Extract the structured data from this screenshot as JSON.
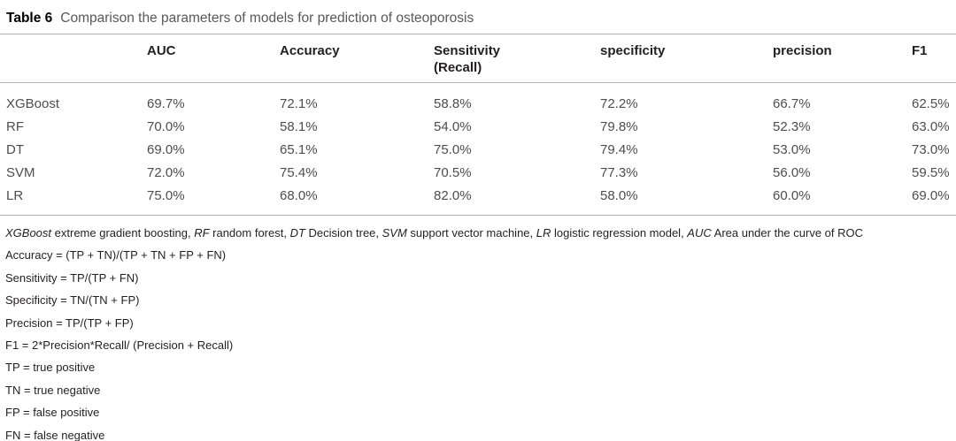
{
  "title": {
    "label": "Table 6",
    "caption": "Comparison the parameters of models for prediction of osteoporosis"
  },
  "table": {
    "columns": [
      {
        "id": "model",
        "label": ""
      },
      {
        "id": "auc",
        "label": "AUC"
      },
      {
        "id": "accuracy",
        "label": "Accuracy"
      },
      {
        "id": "sensitivity-recall",
        "label": "Sensitivity\n(Recall)"
      },
      {
        "id": "specificity",
        "label": "specificity"
      },
      {
        "id": "precision",
        "label": "precision"
      },
      {
        "id": "f1",
        "label": "F1"
      }
    ],
    "rows": [
      {
        "model": "XGBoost",
        "values": [
          "69.7%",
          "72.1%",
          "58.8%",
          "72.2%",
          "66.7%",
          "62.5%"
        ]
      },
      {
        "model": "RF",
        "values": [
          "70.0%",
          "58.1%",
          "54.0%",
          "79.8%",
          "52.3%",
          "63.0%"
        ]
      },
      {
        "model": "DT",
        "values": [
          "69.0%",
          "65.1%",
          "75.0%",
          "79.4%",
          "53.0%",
          "73.0%"
        ]
      },
      {
        "model": "SVM",
        "values": [
          "72.0%",
          "75.4%",
          "70.5%",
          "77.3%",
          "56.0%",
          "59.5%"
        ]
      },
      {
        "model": "LR",
        "values": [
          "75.0%",
          "68.0%",
          "82.0%",
          "58.0%",
          "60.0%",
          "69.0%"
        ]
      }
    ]
  },
  "footnotes": {
    "abbreviations": [
      {
        "text": "XGBoost",
        "italic": true
      },
      {
        "text": " extreme gradient boosting, ",
        "italic": false
      },
      {
        "text": "RF",
        "italic": true
      },
      {
        "text": " random forest, ",
        "italic": false
      },
      {
        "text": "DT",
        "italic": true
      },
      {
        "text": " Decision tree, ",
        "italic": false
      },
      {
        "text": "SVM",
        "italic": true
      },
      {
        "text": " support vector machine, ",
        "italic": false
      },
      {
        "text": "LR",
        "italic": true
      },
      {
        "text": " logistic regression model, ",
        "italic": false
      },
      {
        "text": "AUC",
        "italic": true
      },
      {
        "text": " Area under the curve of ROC",
        "italic": false
      }
    ],
    "lines": [
      "Accuracy = (TP + TN)/(TP + TN + FP + FN)",
      "Sensitivity = TP/(TP + FN)",
      "Specificity = TN/(TN + FP)",
      "Precision = TP/(TP + FP)",
      "F1 = 2*Precision*Recall/ (Precision + Recall)",
      "TP = true positive",
      "TN = true negative",
      "FP = false positive",
      "FN = false negative"
    ]
  },
  "colors": {
    "caption_text": "#58585a",
    "body_text": "#4d4d4f",
    "header_text": "#231f20",
    "rule": "#b1b3b5"
  }
}
